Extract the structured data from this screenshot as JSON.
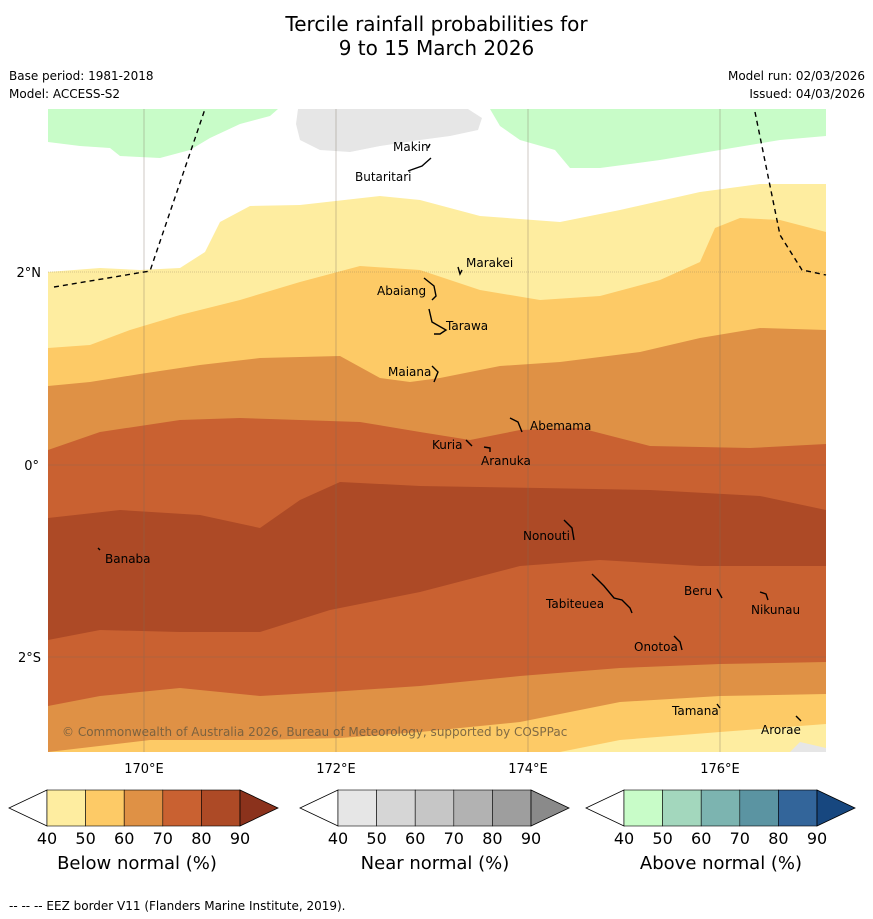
{
  "title_line1": "Tercile rainfall probabilities for",
  "title_line2": "9 to 15 March 2026",
  "meta": {
    "base_period": "Base period: 1981-2018",
    "model": "Model: ACCESS-S2",
    "model_run": "Model run: 02/03/2026",
    "issued": "Issued: 04/03/2026"
  },
  "map": {
    "lat_labels": [
      "2°N",
      "0°",
      "2°S"
    ],
    "lon_labels": [
      "170°E",
      "172°E",
      "174°E",
      "176°E"
    ],
    "places": [
      "Makin",
      "Butaritari",
      "Marakei",
      "Abaiang",
      "Tarawa",
      "Maiana",
      "Abemama",
      "Kuria",
      "Aranuka",
      "Banaba",
      "Nonouti",
      "Beru",
      "Nikunau",
      "Tabiteuea",
      "Onotoa",
      "Tamana",
      "Arorae"
    ],
    "copyright": "© Commonwealth of Australia 2026, Bureau of Meteorology, supported by COSPPac"
  },
  "colorbars": [
    {
      "label": "Below normal (%)",
      "ticks": [
        "40",
        "50",
        "60",
        "70",
        "80",
        "90"
      ],
      "colors": [
        "#ffffff",
        "#feeda0",
        "#fdca66",
        "#df9145",
        "#c96131",
        "#ad4a26",
        "#8b321c"
      ]
    },
    {
      "label": "Near normal (%)",
      "ticks": [
        "40",
        "50",
        "60",
        "70",
        "80",
        "90"
      ],
      "colors": [
        "#ffffff",
        "#e6e6e6",
        "#d6d6d6",
        "#c6c6c6",
        "#b2b2b2",
        "#9e9e9e",
        "#8a8a8a"
      ]
    },
    {
      "label": "Above normal (%)",
      "ticks": [
        "40",
        "50",
        "60",
        "70",
        "80",
        "90"
      ],
      "colors": [
        "#ffffff",
        "#c8fcc8",
        "#a3d7bd",
        "#7cb4b0",
        "#5b94a2",
        "#33659a",
        "#17477f"
      ]
    }
  ],
  "footer": "--  --  -- EEZ border V11 (Flanders Marine Institute, 2019)."
}
